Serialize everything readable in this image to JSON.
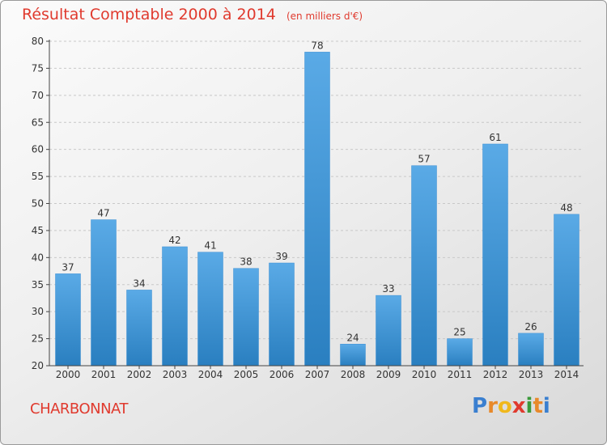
{
  "header": {
    "title": "Résultat Comptable 2000 à 2014",
    "unit": "(en milliers d'€)"
  },
  "footer": {
    "place": "CHARBONNAT",
    "logo_text": "Proxiti"
  },
  "colors": {
    "title": "#e03a2e",
    "bar_top": "#5aaae6",
    "bar_bottom": "#2a7fc0",
    "logo_letters": [
      "#3a7fd0",
      "#e8892a",
      "#f0b81c",
      "#e03a2e",
      "#3a9a3a",
      "#e8892a",
      "#3a7fd0"
    ]
  },
  "chart_data": {
    "type": "bar",
    "title": "Résultat Comptable 2000 à 2014",
    "categories": [
      "2000",
      "2001",
      "2002",
      "2003",
      "2004",
      "2005",
      "2006",
      "2007",
      "2008",
      "2009",
      "2010",
      "2011",
      "2012",
      "2013",
      "2014"
    ],
    "values": [
      37,
      47,
      34,
      42,
      41,
      38,
      39,
      78,
      24,
      33,
      57,
      25,
      61,
      26,
      48
    ],
    "ylim": [
      20,
      80
    ],
    "yticks": [
      20,
      25,
      30,
      35,
      40,
      45,
      50,
      55,
      60,
      65,
      70,
      75,
      80
    ],
    "grid": true,
    "xlabel": "",
    "ylabel": ""
  }
}
